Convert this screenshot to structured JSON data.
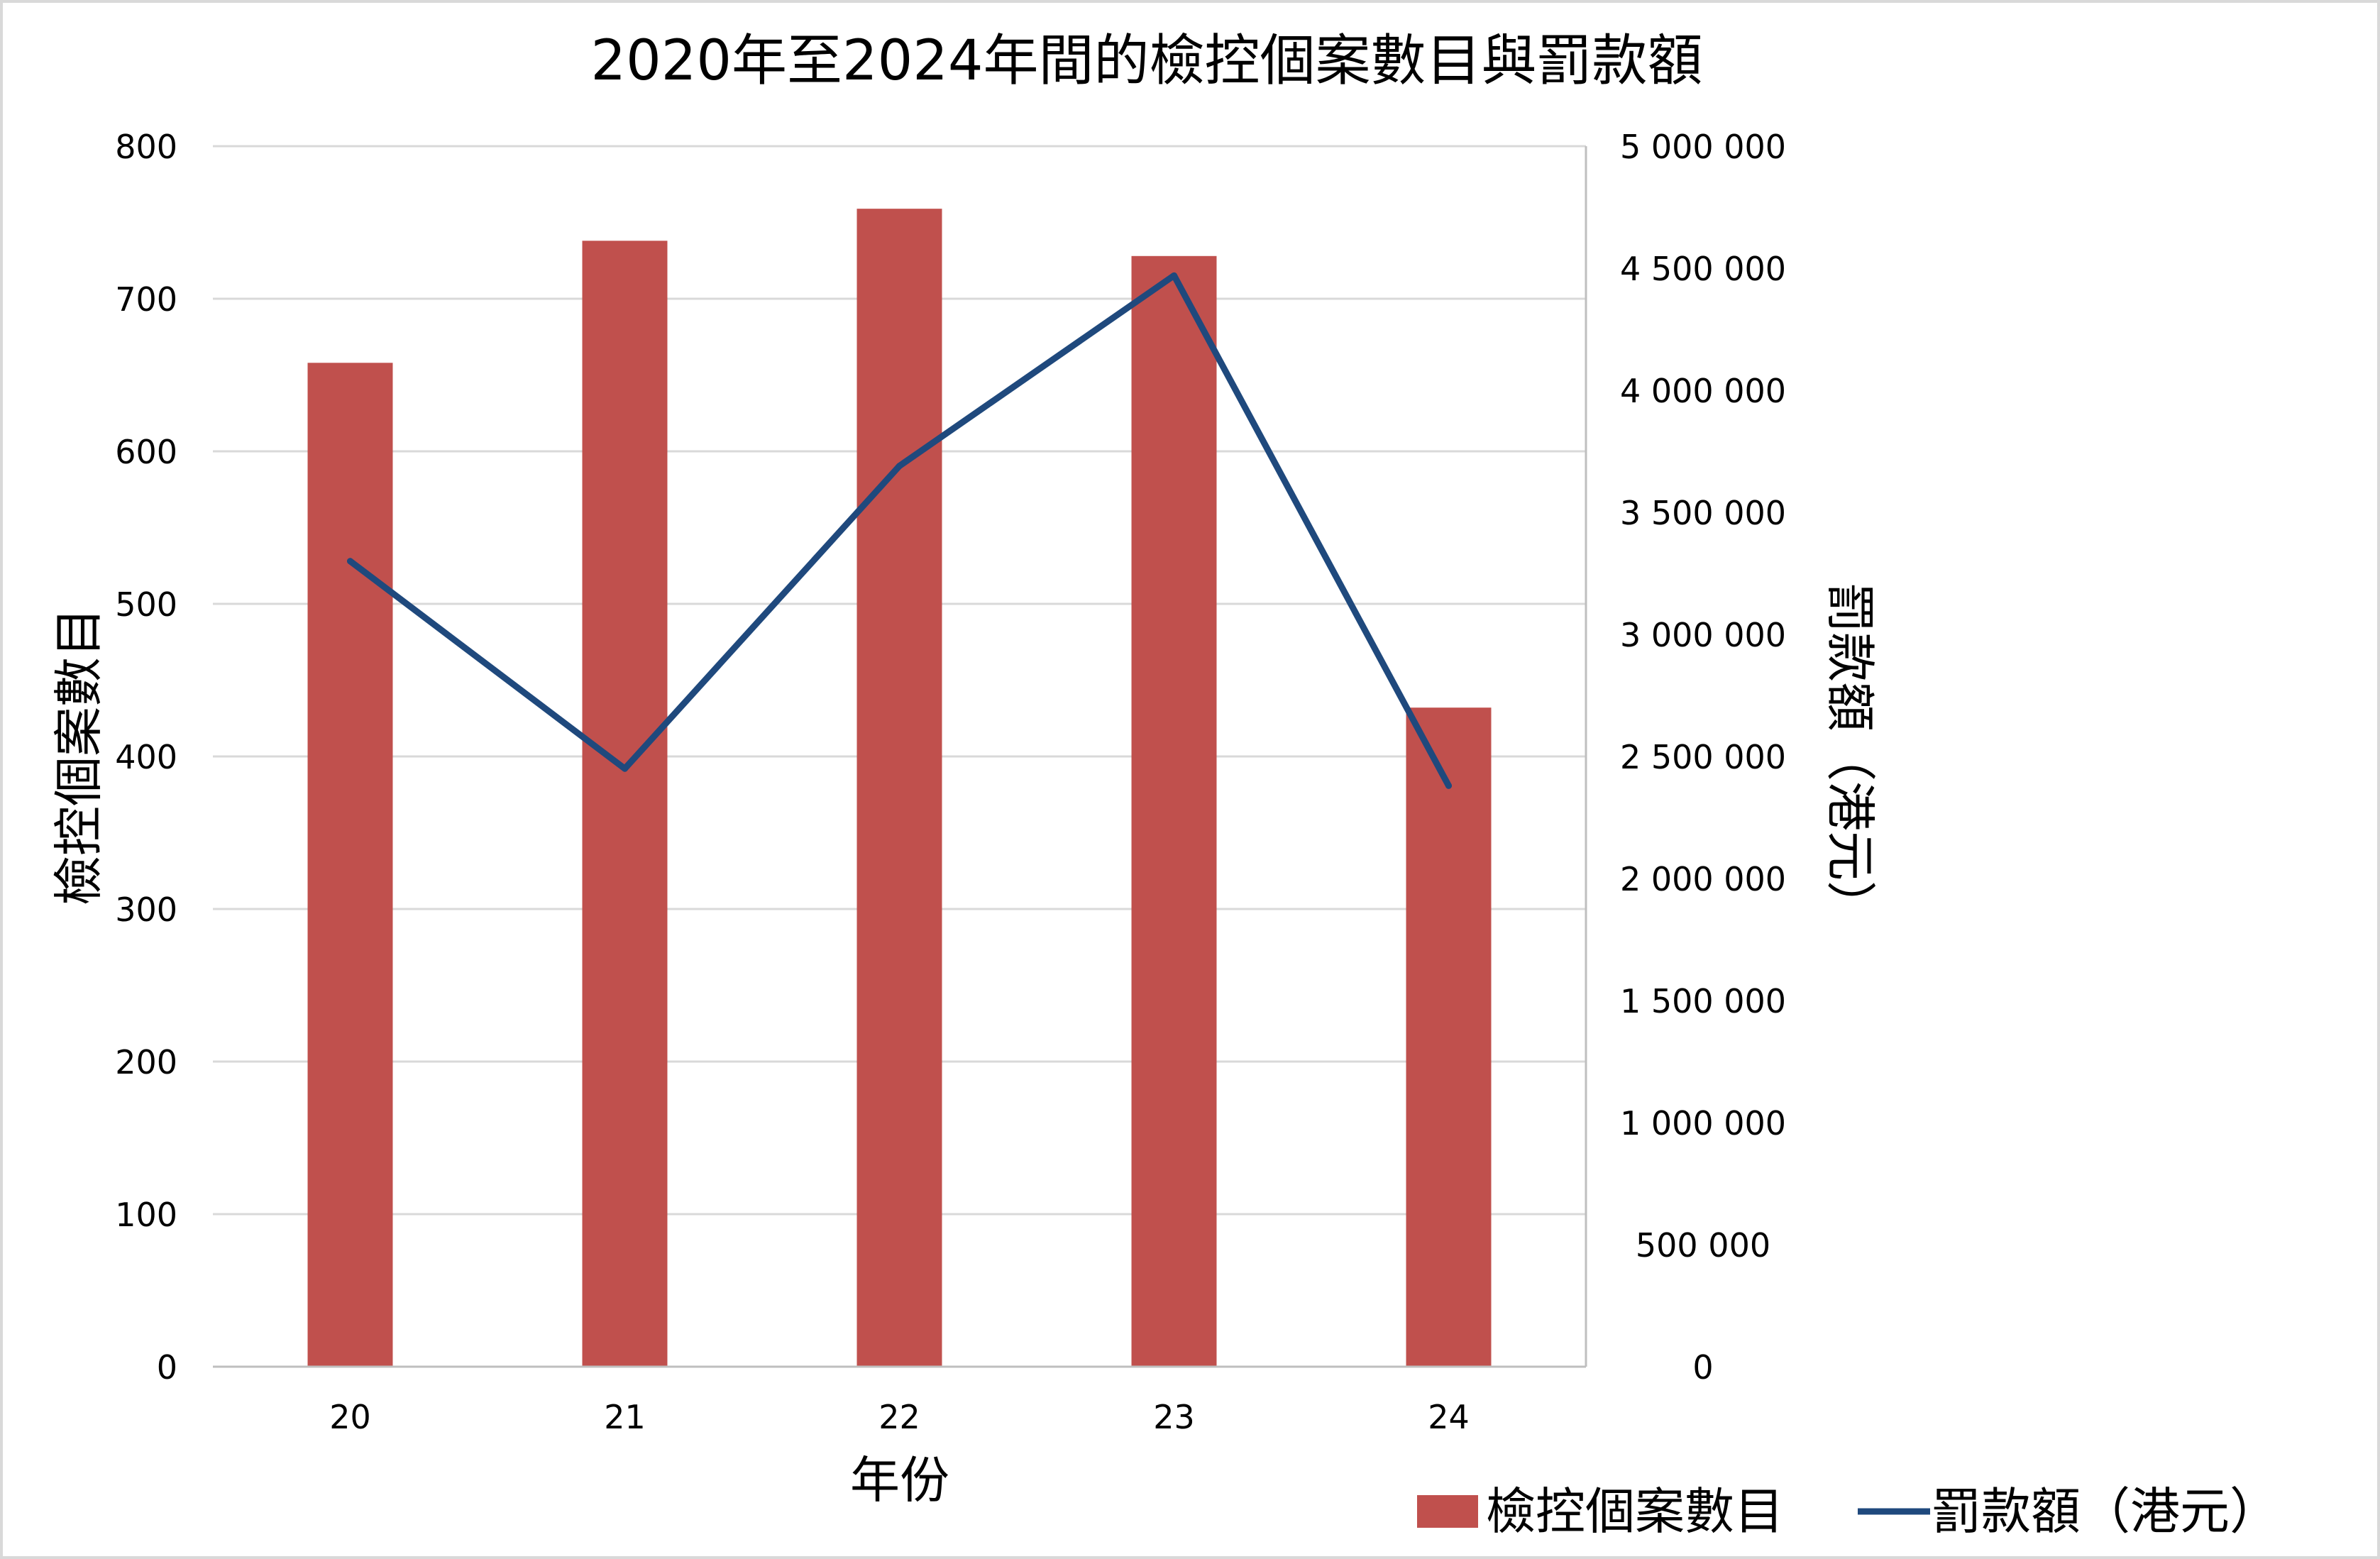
{
  "chart_data": {
    "type": "bar",
    "title": "2020年至2024年間的檢控個案數目與罰款額",
    "xlabel": "年份",
    "ylabel": "檢控個案數目",
    "y2label": "罰款額（港元）",
    "categories": [
      "20",
      "21",
      "22",
      "23",
      "24"
    ],
    "series": [
      {
        "name": "檢控個案數目",
        "type": "bar",
        "axis": "left",
        "color": "#C0504D",
        "values": [
          658,
          738,
          759,
          728,
          432
        ]
      },
      {
        "name": "罰款額（港元）",
        "type": "line",
        "axis": "right",
        "color": "#1F497D",
        "values": [
          3300000,
          2450000,
          3690000,
          4470000,
          2380000
        ]
      }
    ],
    "ylim": [
      0,
      800
    ],
    "y2lim": [
      0,
      5000000
    ],
    "yticks": [
      "0",
      "100",
      "200",
      "300",
      "400",
      "500",
      "600",
      "700",
      "800"
    ],
    "y2ticks": [
      "0",
      "500 000",
      "1 000 000",
      "1 500 000",
      "2 000 000",
      "2 500 000",
      "3 000 000",
      "3 500 000",
      "4 000 000",
      "4 500 000",
      "5 000 000"
    ],
    "grid": true,
    "legend": "bottom-right"
  }
}
